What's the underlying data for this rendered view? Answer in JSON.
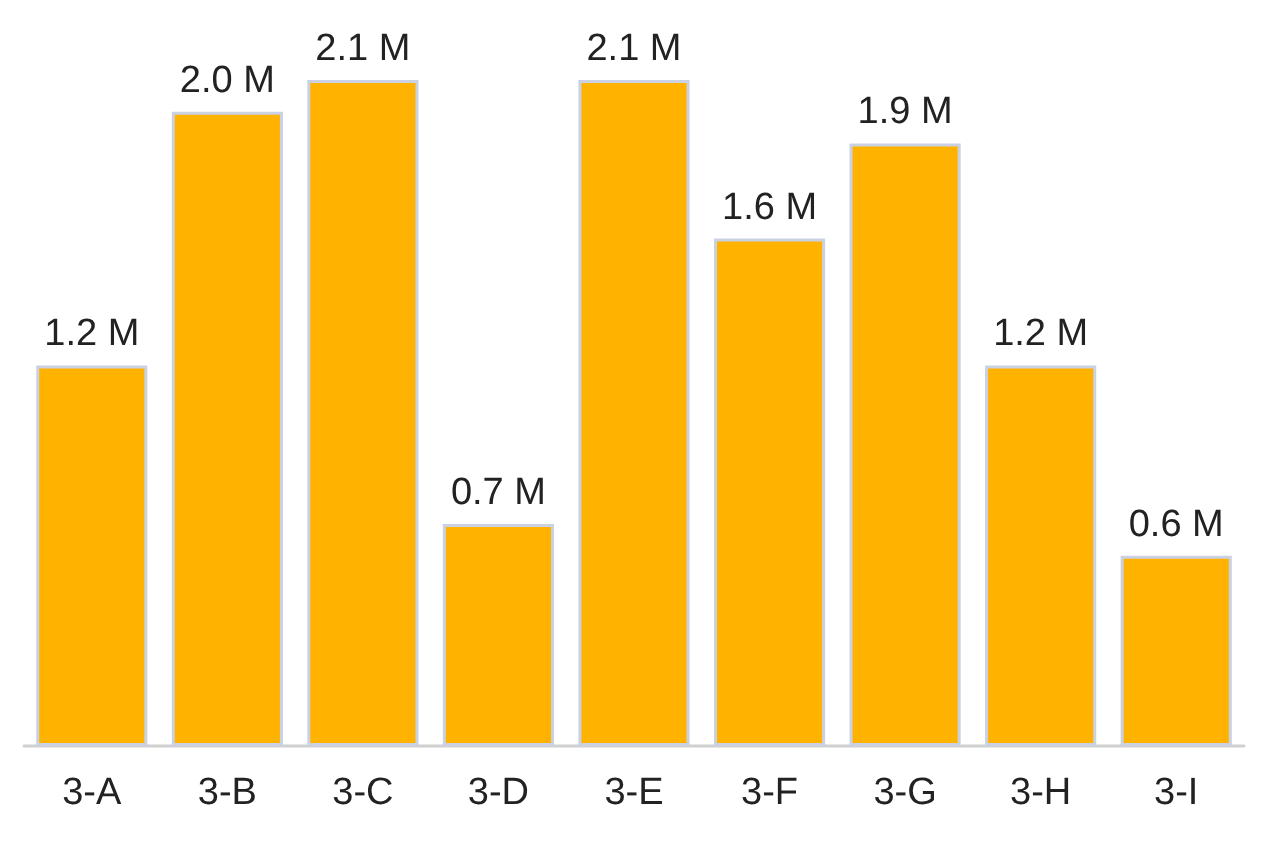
{
  "chart_data": {
    "type": "bar",
    "categories": [
      "3-A",
      "3-B",
      "3-C",
      "3-D",
      "3-E",
      "3-F",
      "3-G",
      "3-H",
      "3-I"
    ],
    "values": [
      1.2,
      2.0,
      2.1,
      0.7,
      2.1,
      1.6,
      1.9,
      1.2,
      0.6
    ],
    "value_labels": [
      "1.2 M",
      "2.0 M",
      "2.1 M",
      "0.7 M",
      "2.1 M",
      "1.6 M",
      "1.9 M",
      "1.2 M",
      "0.6 M"
    ],
    "color": "#ffb300",
    "grid": false,
    "tick_labels": "x"
  }
}
